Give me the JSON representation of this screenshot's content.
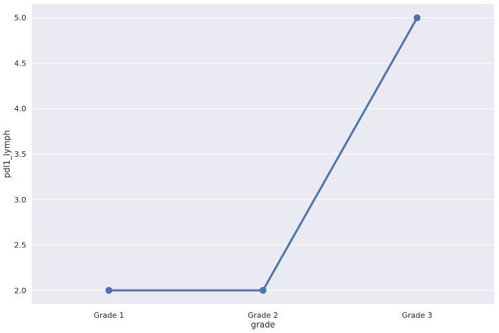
{
  "chart_data": {
    "type": "line",
    "title": "",
    "xlabel": "grade",
    "ylabel": "pdl1_lymph",
    "categories": [
      "Grade 1",
      "Grade 2",
      "Grade 3"
    ],
    "series": [
      {
        "values": [
          2.0,
          2.0,
          5.0
        ]
      }
    ],
    "ylim": [
      1.85,
      5.15
    ],
    "yticks": [
      "2.0",
      "2.5",
      "3.0",
      "3.5",
      "4.0",
      "4.5",
      "5.0"
    ],
    "grid": true,
    "legend": "none",
    "colors": {
      "background": "#eaeaf2",
      "grid": "#ffffff",
      "line": "#4c72b0"
    }
  }
}
